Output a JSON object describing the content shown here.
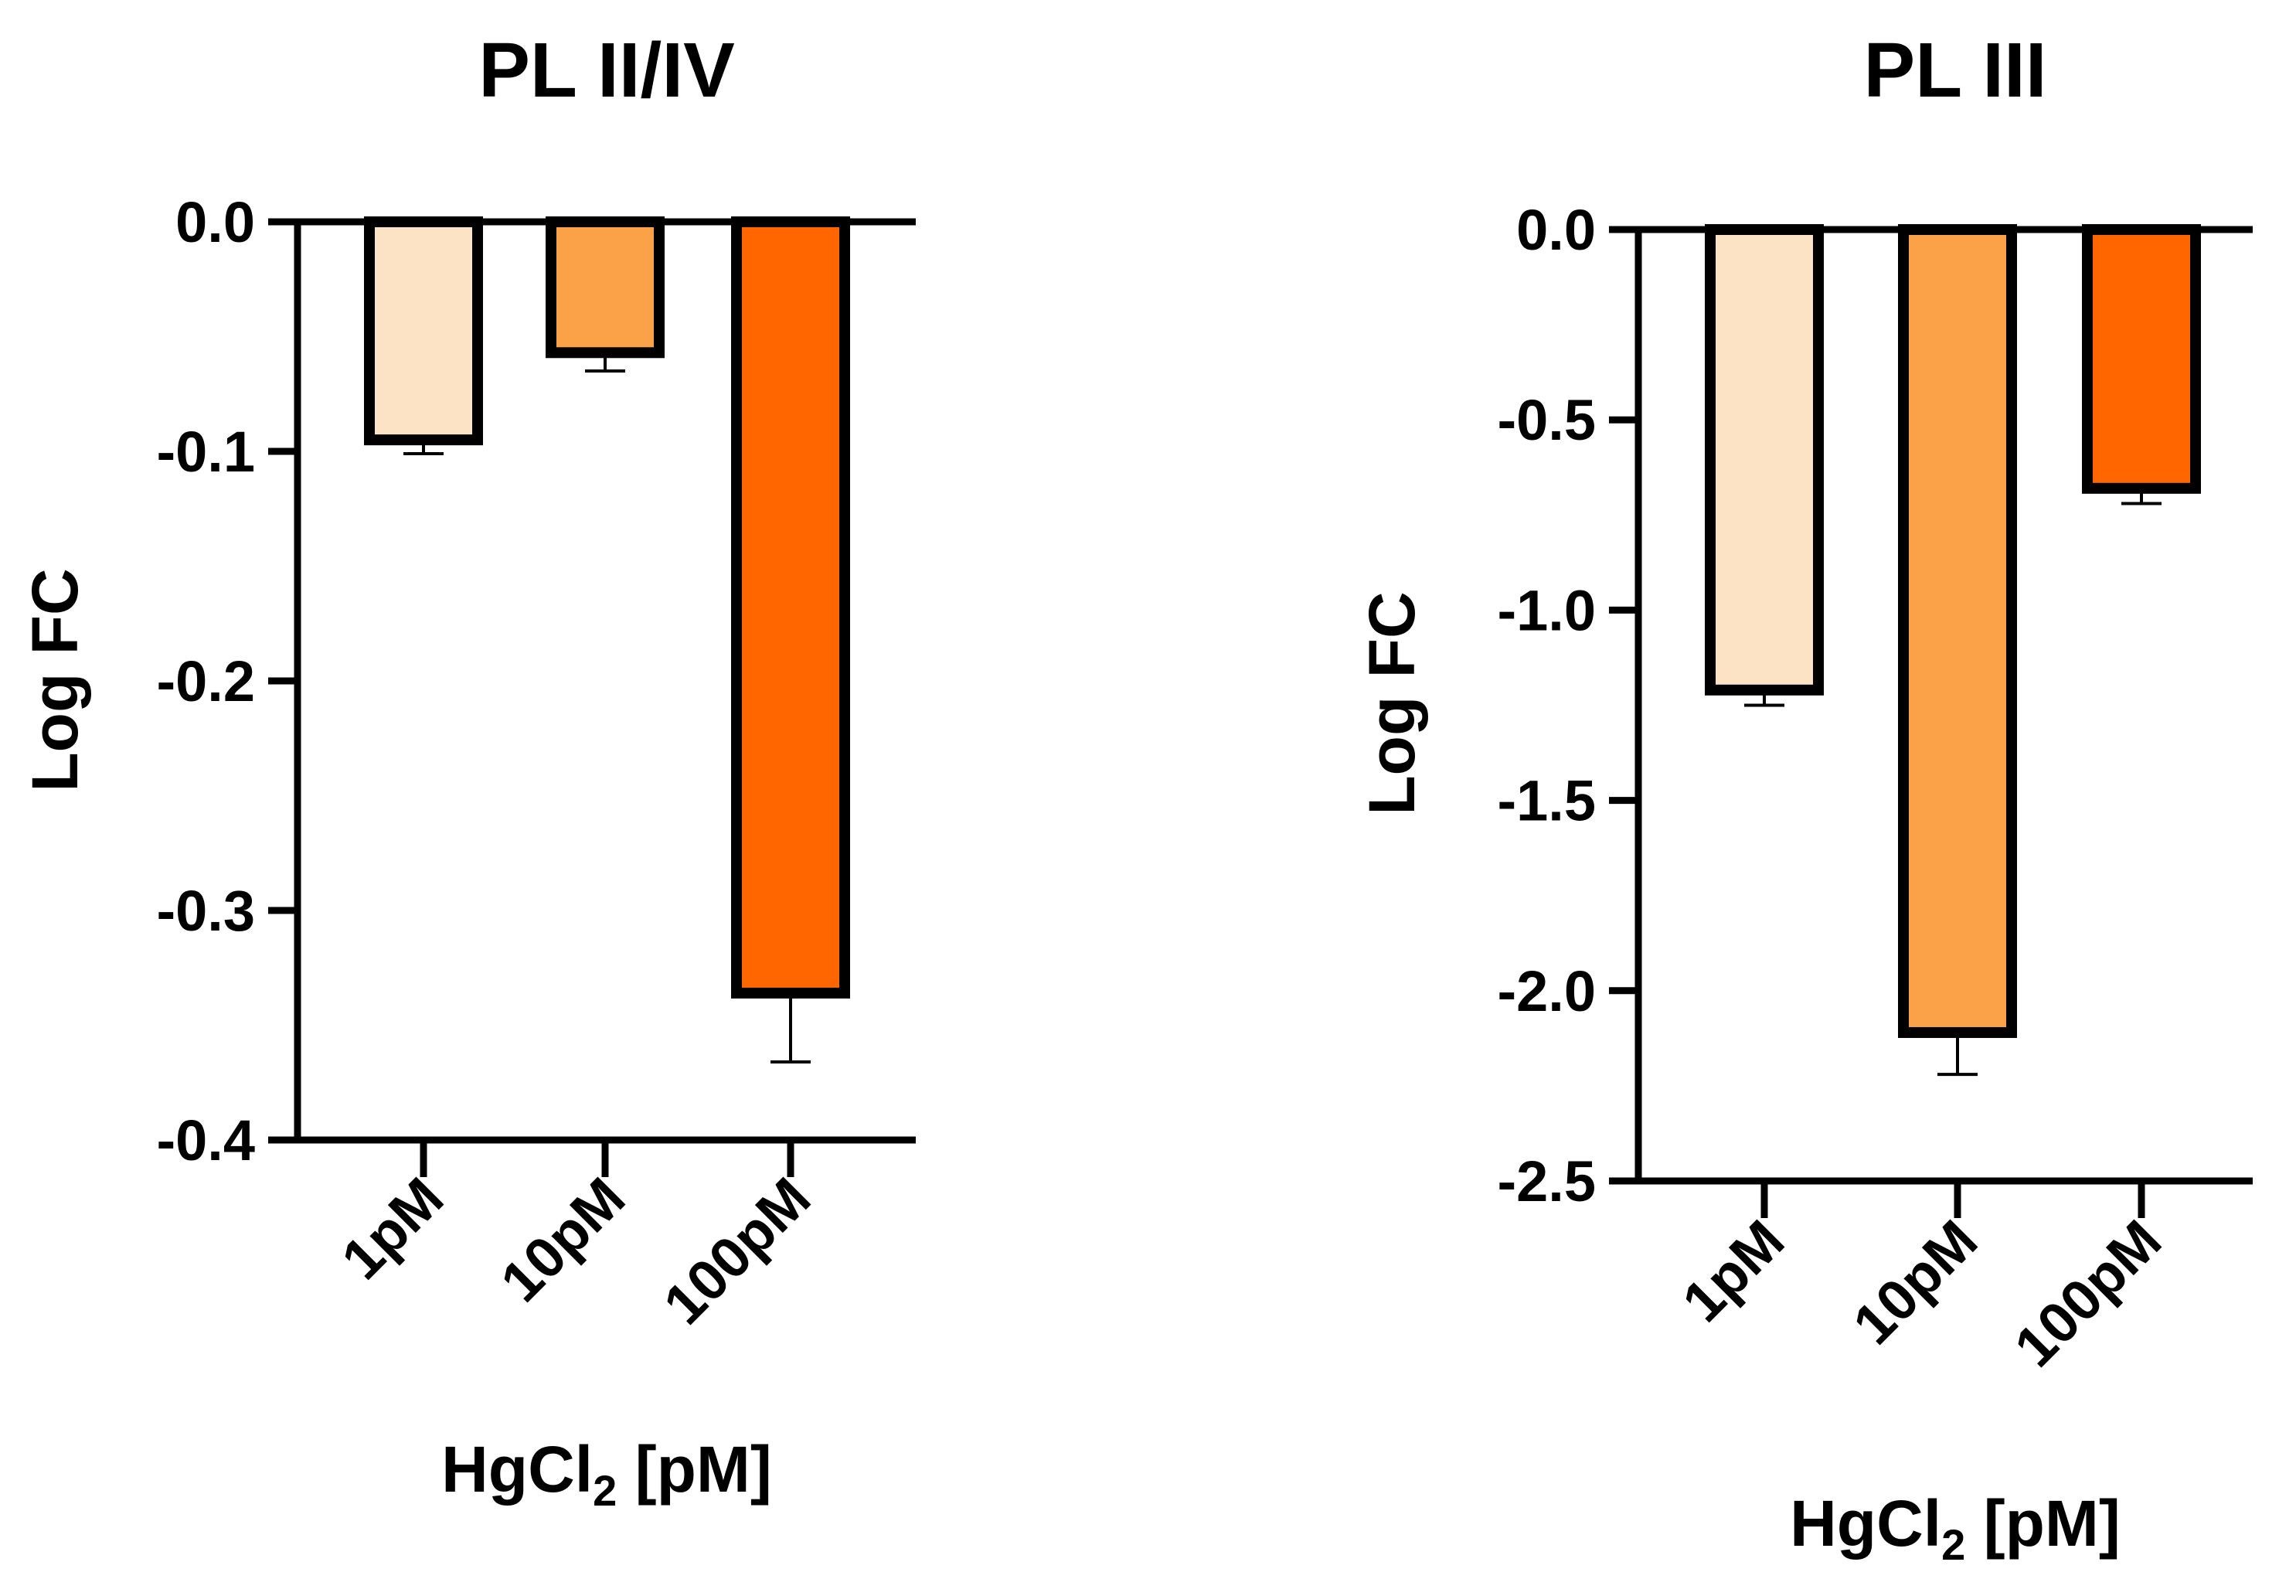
{
  "chart_data": [
    {
      "type": "bar",
      "title": "PL II/IV",
      "ylabel": "Log FC",
      "xlabel_main": "HgCl",
      "xlabel_sub": "2",
      "xlabel_rest": " [pM]",
      "categories": [
        "1pM",
        "10pM",
        "100pM"
      ],
      "values": [
        -0.095,
        -0.057,
        -0.336
      ],
      "errors": [
        0.006,
        0.008,
        0.03
      ],
      "colors": [
        "#fde3c5",
        "#fba248",
        "#ff6600"
      ],
      "ylim": [
        -0.4,
        0.0
      ],
      "yticks": [
        "0.0",
        "-0.1",
        "-0.2",
        "-0.3",
        "-0.4"
      ],
      "ytick_values": [
        0.0,
        -0.1,
        -0.2,
        -0.3,
        -0.4
      ]
    },
    {
      "type": "bar",
      "title": "PL III",
      "ylabel": "Log FC",
      "xlabel_main": "HgCl",
      "xlabel_sub": "2",
      "xlabel_rest": " [pM]",
      "categories": [
        "1pM",
        "10pM",
        "100pM"
      ],
      "values": [
        -1.21,
        -2.11,
        -0.68
      ],
      "errors": [
        0.04,
        0.11,
        0.04
      ],
      "colors": [
        "#fde3c5",
        "#fba248",
        "#ff6600"
      ],
      "ylim": [
        -2.5,
        0.0
      ],
      "yticks": [
        "0.0",
        "-0.5",
        "-1.0",
        "-1.5",
        "-2.0",
        "-2.5"
      ],
      "ytick_values": [
        0.0,
        -0.5,
        -1.0,
        -1.5,
        -2.0,
        -2.5
      ]
    }
  ]
}
